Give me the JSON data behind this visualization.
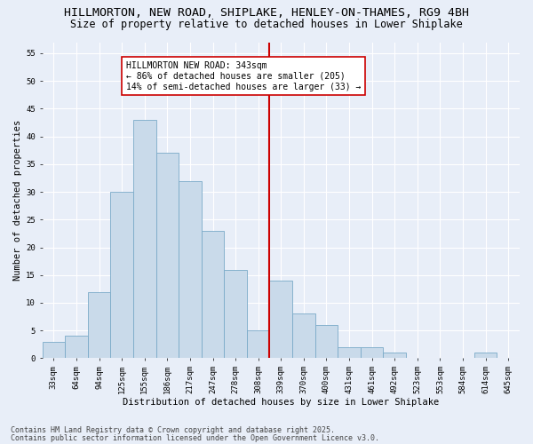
{
  "title1": "HILLMORTON, NEW ROAD, SHIPLAKE, HENLEY-ON-THAMES, RG9 4BH",
  "title2": "Size of property relative to detached houses in Lower Shiplake",
  "xlabel": "Distribution of detached houses by size in Lower Shiplake",
  "ylabel": "Number of detached properties",
  "categories": [
    "33sqm",
    "64sqm",
    "94sqm",
    "125sqm",
    "155sqm",
    "186sqm",
    "217sqm",
    "247sqm",
    "278sqm",
    "308sqm",
    "339sqm",
    "370sqm",
    "400sqm",
    "431sqm",
    "461sqm",
    "492sqm",
    "523sqm",
    "553sqm",
    "584sqm",
    "614sqm",
    "645sqm"
  ],
  "values": [
    3,
    4,
    12,
    30,
    43,
    37,
    32,
    23,
    16,
    5,
    14,
    8,
    6,
    2,
    2,
    1,
    0,
    0,
    0,
    1,
    0
  ],
  "bar_color": "#c9daea",
  "bar_edge_color": "#7aaac8",
  "annotation_text_line1": "HILLMORTON NEW ROAD: 343sqm",
  "annotation_text_line2": "← 86% of detached houses are smaller (205)",
  "annotation_text_line3": "14% of semi-detached houses are larger (33) →",
  "annotation_box_color": "#ffffff",
  "annotation_box_edge": "#cc0000",
  "vline_color": "#cc0000",
  "vline_x_index": 9.5,
  "ylim": [
    0,
    57
  ],
  "yticks": [
    0,
    5,
    10,
    15,
    20,
    25,
    30,
    35,
    40,
    45,
    50,
    55
  ],
  "footnote1": "Contains HM Land Registry data © Crown copyright and database right 2025.",
  "footnote2": "Contains public sector information licensed under the Open Government Licence v3.0.",
  "bg_color": "#e8eef8",
  "plot_bg_color": "#e8eef8",
  "grid_color": "#ffffff",
  "title_fontsize": 9.5,
  "subtitle_fontsize": 8.5,
  "xlabel_fontsize": 7.5,
  "ylabel_fontsize": 7.5,
  "tick_fontsize": 6.5,
  "annotation_fontsize": 7,
  "footnote_fontsize": 6
}
